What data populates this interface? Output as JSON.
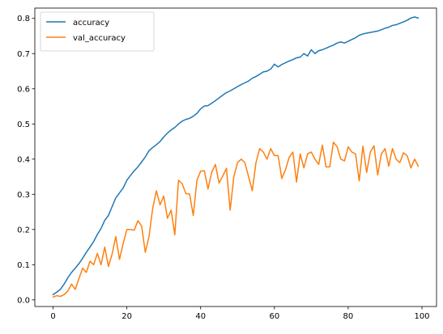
{
  "chart_data": {
    "type": "line",
    "title": "",
    "xlabel": "",
    "ylabel": "",
    "xlim": [
      -4.95,
      103.95
    ],
    "ylim": [
      -0.0188,
      0.8293
    ],
    "xticks": [
      0,
      20,
      40,
      60,
      80,
      100
    ],
    "xtick_labels": [
      "0",
      "20",
      "40",
      "60",
      "80",
      "100"
    ],
    "yticks": [
      0.0,
      0.1,
      0.2,
      0.3,
      0.4,
      0.5,
      0.6,
      0.7,
      0.8
    ],
    "ytick_labels": [
      "0.0",
      "0.1",
      "0.2",
      "0.3",
      "0.4",
      "0.5",
      "0.6",
      "0.7",
      "0.8"
    ],
    "grid": false,
    "legend_position": "upper-left",
    "x": [
      0,
      1,
      2,
      3,
      4,
      5,
      6,
      7,
      8,
      9,
      10,
      11,
      12,
      13,
      14,
      15,
      16,
      17,
      18,
      19,
      20,
      21,
      22,
      23,
      24,
      25,
      26,
      27,
      28,
      29,
      30,
      31,
      32,
      33,
      34,
      35,
      36,
      37,
      38,
      39,
      40,
      41,
      42,
      43,
      44,
      45,
      46,
      47,
      48,
      49,
      50,
      51,
      52,
      53,
      54,
      55,
      56,
      57,
      58,
      59,
      60,
      61,
      62,
      63,
      64,
      65,
      66,
      67,
      68,
      69,
      70,
      71,
      72,
      73,
      74,
      75,
      76,
      77,
      78,
      79,
      80,
      81,
      82,
      83,
      84,
      85,
      86,
      87,
      88,
      89,
      90,
      91,
      92,
      93,
      94,
      95,
      96,
      97,
      98,
      99
    ],
    "series": [
      {
        "name": "accuracy",
        "color": "#1f77b4",
        "values": [
          0.015,
          0.022,
          0.03,
          0.045,
          0.063,
          0.078,
          0.09,
          0.103,
          0.118,
          0.135,
          0.15,
          0.166,
          0.186,
          0.203,
          0.226,
          0.24,
          0.265,
          0.29,
          0.304,
          0.318,
          0.34,
          0.354,
          0.367,
          0.378,
          0.392,
          0.406,
          0.424,
          0.433,
          0.441,
          0.45,
          0.463,
          0.474,
          0.483,
          0.49,
          0.5,
          0.508,
          0.513,
          0.516,
          0.522,
          0.53,
          0.543,
          0.551,
          0.552,
          0.559,
          0.566,
          0.574,
          0.582,
          0.589,
          0.594,
          0.6,
          0.606,
          0.612,
          0.617,
          0.622,
          0.63,
          0.635,
          0.641,
          0.648,
          0.65,
          0.656,
          0.67,
          0.662,
          0.669,
          0.674,
          0.679,
          0.683,
          0.688,
          0.69,
          0.7,
          0.693,
          0.711,
          0.7,
          0.708,
          0.711,
          0.715,
          0.72,
          0.724,
          0.73,
          0.733,
          0.73,
          0.735,
          0.74,
          0.745,
          0.752,
          0.756,
          0.758,
          0.76,
          0.762,
          0.764,
          0.768,
          0.772,
          0.775,
          0.78,
          0.782,
          0.786,
          0.79,
          0.795,
          0.801,
          0.804,
          0.801
        ]
      },
      {
        "name": "val_accuracy",
        "color": "#ff7f0e",
        "values": [
          0.008,
          0.012,
          0.01,
          0.015,
          0.025,
          0.045,
          0.03,
          0.06,
          0.09,
          0.078,
          0.11,
          0.1,
          0.132,
          0.1,
          0.15,
          0.095,
          0.13,
          0.18,
          0.115,
          0.16,
          0.2,
          0.2,
          0.198,
          0.225,
          0.21,
          0.135,
          0.18,
          0.26,
          0.31,
          0.27,
          0.295,
          0.232,
          0.255,
          0.185,
          0.34,
          0.33,
          0.302,
          0.301,
          0.24,
          0.34,
          0.366,
          0.367,
          0.315,
          0.363,
          0.385,
          0.332,
          0.352,
          0.374,
          0.255,
          0.35,
          0.39,
          0.4,
          0.39,
          0.35,
          0.31,
          0.39,
          0.43,
          0.42,
          0.4,
          0.43,
          0.41,
          0.41,
          0.345,
          0.37,
          0.405,
          0.42,
          0.335,
          0.415,
          0.375,
          0.415,
          0.42,
          0.4,
          0.385,
          0.44,
          0.378,
          0.378,
          0.448,
          0.435,
          0.4,
          0.395,
          0.435,
          0.42,
          0.415,
          0.338,
          0.437,
          0.362,
          0.42,
          0.438,
          0.355,
          0.415,
          0.43,
          0.38,
          0.43,
          0.4,
          0.39,
          0.418,
          0.41,
          0.375,
          0.4,
          0.38
        ]
      }
    ]
  }
}
